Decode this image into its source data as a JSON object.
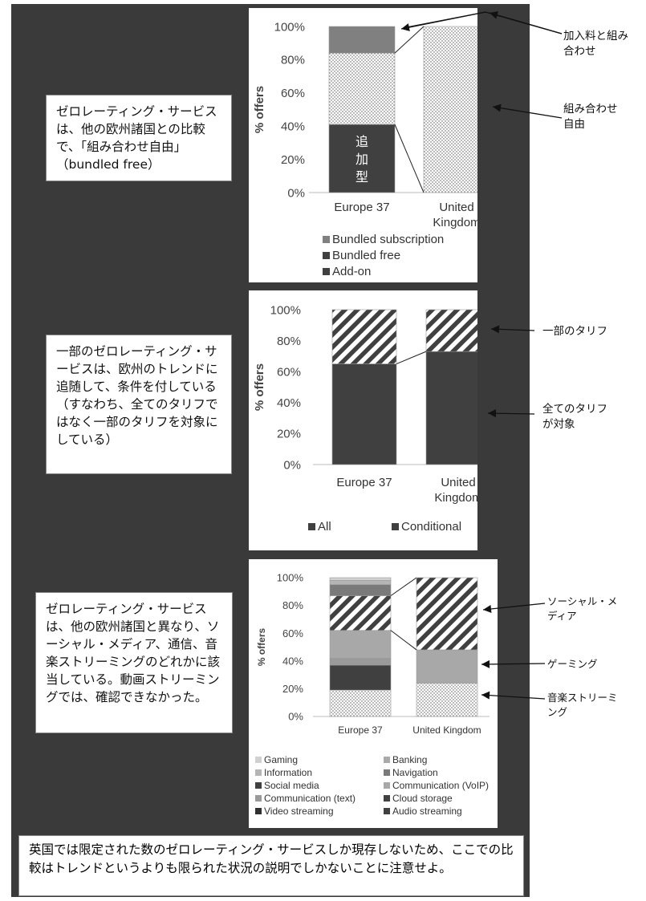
{
  "chart_data": [
    {
      "type": "bar",
      "stacked": true,
      "ylabel": "% offers",
      "ylim": [
        0,
        100
      ],
      "yticks": [
        "0%",
        "20%",
        "40%",
        "60%",
        "80%",
        "100%"
      ],
      "categories": [
        "Europe 37",
        "United\nKingdom"
      ],
      "category_lines": [
        [
          "Europe 37"
        ],
        [
          "United",
          "Kingdom"
        ]
      ],
      "series": [
        {
          "name": "Add-on",
          "values": [
            41,
            0
          ],
          "color": "#404040",
          "pattern": "solid"
        },
        {
          "name": "Bundled free",
          "values": [
            43,
            100
          ],
          "color": "#ffffff",
          "pattern": "dots"
        },
        {
          "name": "Bundled subscription",
          "values": [
            16,
            0
          ],
          "color": "#808080",
          "pattern": "solid"
        }
      ],
      "legend": [
        "Bundled subscription",
        "Bundled free",
        "Add-on"
      ],
      "bar_label": [
        "追",
        "加",
        "型"
      ]
    },
    {
      "type": "bar",
      "stacked": true,
      "ylabel": "% offers",
      "ylim": [
        0,
        100
      ],
      "yticks": [
        "0%",
        "20%",
        "40%",
        "60%",
        "80%",
        "100%"
      ],
      "categories": [
        "Europe 37",
        "United\nKingdom"
      ],
      "category_lines": [
        [
          "Europe 37"
        ],
        [
          "United",
          "Kingdom"
        ]
      ],
      "series": [
        {
          "name": "All",
          "values": [
            65,
            73
          ],
          "color": "#404040",
          "pattern": "solid"
        },
        {
          "name": "Conditional",
          "values": [
            35,
            27
          ],
          "color": "#ffffff",
          "pattern": "stripes"
        }
      ],
      "legend": [
        "All",
        "Conditional"
      ]
    },
    {
      "type": "bar",
      "stacked": true,
      "ylabel": "% offers",
      "ylim": [
        0,
        100
      ],
      "yticks": [
        "0%",
        "20%",
        "40%",
        "60%",
        "80%",
        "100%"
      ],
      "categories": [
        "Europe 37",
        "United Kingdom"
      ],
      "category_lines": [
        [
          "Europe 37"
        ],
        [
          "United Kingdom"
        ]
      ],
      "series": [
        {
          "name": "Audio streaming",
          "values": [
            19,
            24
          ],
          "color": "#ffffff",
          "pattern": "dots"
        },
        {
          "name": "Video streaming",
          "values": [
            0,
            0
          ],
          "color": "#303030",
          "pattern": "solid"
        },
        {
          "name": "Cloud storage",
          "values": [
            18,
            0
          ],
          "color": "#404040",
          "pattern": "solid"
        },
        {
          "name": "Communication (text)",
          "values": [
            5,
            0
          ],
          "color": "#9a9a9a",
          "pattern": "solid"
        },
        {
          "name": "Communication (VoIP)",
          "values": [
            20,
            24
          ],
          "color": "#a8a8a8",
          "pattern": "solid"
        },
        {
          "name": "Social media",
          "values": [
            25,
            52
          ],
          "color": "#ffffff",
          "pattern": "stripes"
        },
        {
          "name": "Navigation",
          "values": [
            8,
            0
          ],
          "color": "#7a7a7a",
          "pattern": "solid"
        },
        {
          "name": "Information",
          "values": [
            3,
            0
          ],
          "color": "#b5b5b5",
          "pattern": "solid"
        },
        {
          "name": "Banking",
          "values": [
            0,
            0
          ],
          "color": "#aaaaaa",
          "pattern": "solid"
        },
        {
          "name": "Gaming",
          "values": [
            2,
            0
          ],
          "color": "#d0d0d0",
          "pattern": "solid"
        }
      ],
      "legend": [
        [
          "Gaming",
          "Banking"
        ],
        [
          "Information",
          "Navigation"
        ],
        [
          "Social media",
          "Communication (VoIP)"
        ],
        [
          "Communication (text)",
          "Cloud storage"
        ],
        [
          "Video streaming",
          "Audio streaming"
        ]
      ]
    }
  ],
  "textboxes": {
    "box1": "ゼロレーティング・サービスは、他の欧州諸国との比較で、「組み合わせ自由」（bundled free）",
    "box2": "一部のゼロレーティング・サービスは、欧州のトレンドに追随して、条件を付している（すなわち、全てのタリフではなく一部のタリフを対象にしている）",
    "box3": "ゼロレーティング・サービスは、他の欧州諸国と異なり、ソーシャル・メディア、通信、音楽ストリーミングのどれかに該当している。動画ストリーミングでは、確認できなかった。",
    "bottom": "英国では限定された数のゼロレーティング・サービスしか現存しないため、ここでの比較はトレンドというよりも限られた状況の説明でしかないことに注意せよ。"
  },
  "annotations": {
    "a1": "加入料と組み合わせ",
    "a2": "組み合わせ自由",
    "a3": "一部のタリフ",
    "a4": "全てのタリフが対象",
    "a5": "ソーシャル・メディア",
    "a6": "ゲーミング",
    "a7": "音楽ストリーミング"
  }
}
